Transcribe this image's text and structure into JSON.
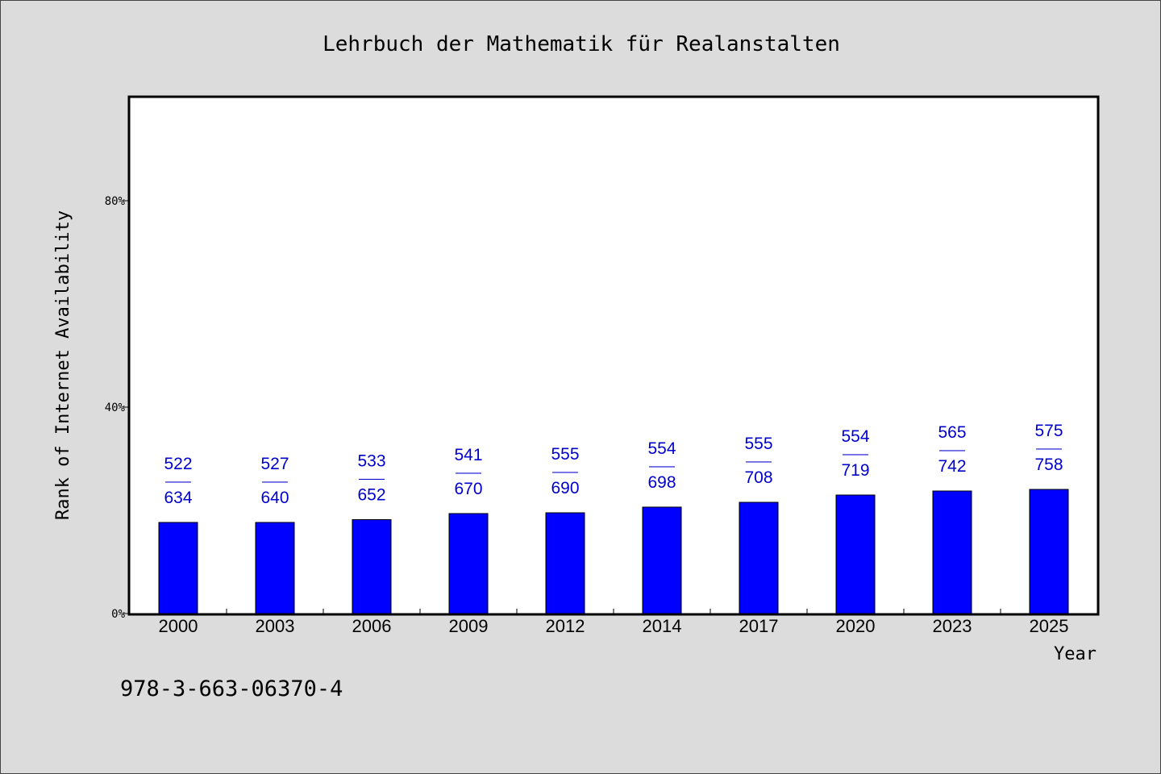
{
  "chart_data": {
    "type": "bar",
    "title": "Lehrbuch der Mathematik für Realanstalten",
    "xlabel": "Year",
    "ylabel": "Rank of Internet Availability",
    "categories": [
      "2000",
      "2003",
      "2006",
      "2009",
      "2012",
      "2014",
      "2017",
      "2020",
      "2023",
      "2025"
    ],
    "values": [
      0.1766,
      0.1766,
      0.182,
      0.1938,
      0.1953,
      0.2063,
      0.2156,
      0.2297,
      0.2375,
      0.2406
    ],
    "label_numerators": [
      "522",
      "527",
      "533",
      "541",
      "555",
      "554",
      "555",
      "554",
      "565",
      "575"
    ],
    "label_denominators": [
      "634",
      "640",
      "652",
      "670",
      "690",
      "698",
      "708",
      "719",
      "742",
      "758"
    ],
    "label_separator": "——",
    "ylim": [
      0,
      1
    ],
    "yticks": [
      {
        "value": 0,
        "label": "0%"
      },
      {
        "value": 0.4,
        "label": "40%"
      },
      {
        "value": 0.8,
        "label": "80%"
      }
    ],
    "grid": false,
    "bar_color": "#0000ff",
    "label_color": "#0000cc"
  },
  "footer": {
    "isbn": "978-3-663-06370-4"
  }
}
